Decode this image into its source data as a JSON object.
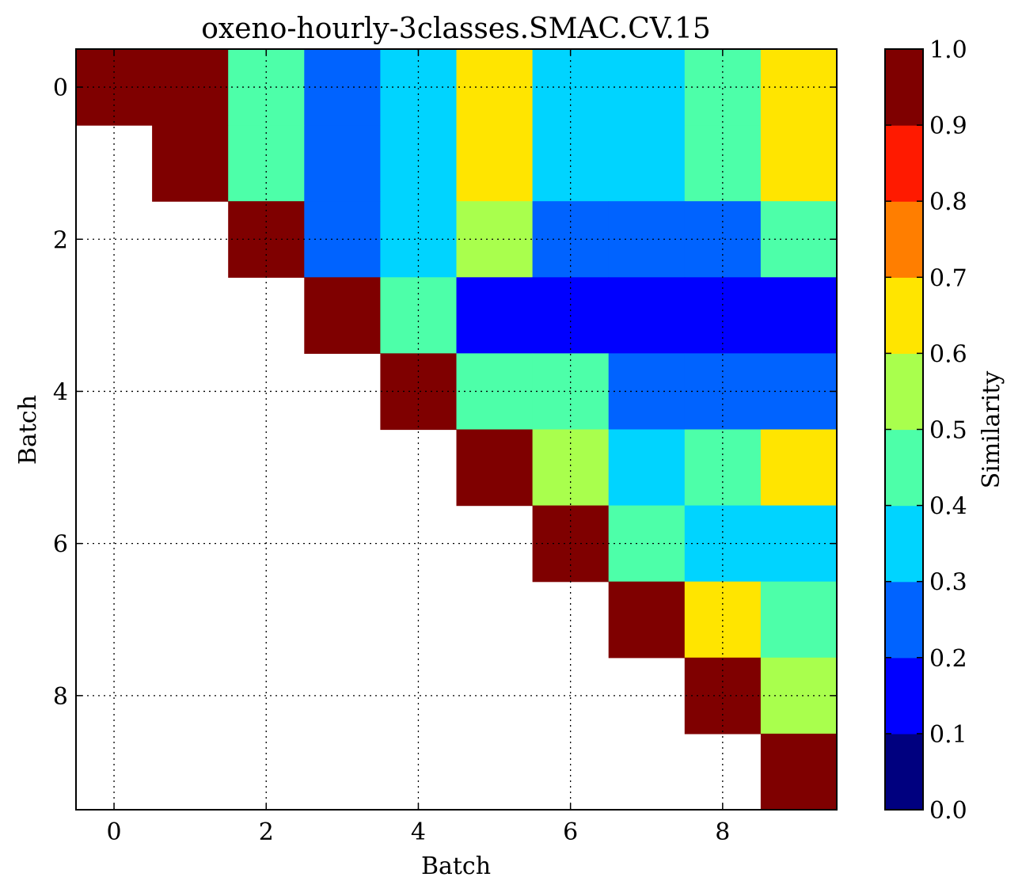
{
  "chart_data": {
    "type": "heatmap",
    "title": "oxeno-hourly-3classes.SMAC.CV.15",
    "xlabel": "Batch",
    "ylabel": "Batch",
    "colorbar_label": "Similarity",
    "x_ticks": [
      "0",
      "2",
      "4",
      "6",
      "8"
    ],
    "y_ticks": [
      "0",
      "2",
      "4",
      "6",
      "8"
    ],
    "colorbar_ticks": [
      "0.0",
      "0.1",
      "0.2",
      "0.3",
      "0.4",
      "0.5",
      "0.6",
      "0.7",
      "0.8",
      "0.9",
      "1.0"
    ],
    "vmin": 0.0,
    "vmax": 1.0,
    "colormap": "jet",
    "levels": 10,
    "grid": true,
    "rows": 10,
    "cols": 10,
    "colorbar_colors": [
      "#00007f",
      "#0000ff",
      "#0063ff",
      "#00d4ff",
      "#4dffa9",
      "#a9ff4d",
      "#ffe500",
      "#ff7e00",
      "#ff1a00",
      "#7f0000"
    ],
    "matrix": [
      [
        0.95,
        0.95,
        0.45,
        0.25,
        0.35,
        0.65,
        0.35,
        0.35,
        0.45,
        0.65
      ],
      [
        null,
        0.95,
        0.45,
        0.25,
        0.35,
        0.65,
        0.35,
        0.35,
        0.45,
        0.65
      ],
      [
        null,
        null,
        0.95,
        0.25,
        0.35,
        0.55,
        0.25,
        0.25,
        0.25,
        0.45
      ],
      [
        null,
        null,
        null,
        0.95,
        0.45,
        0.15,
        0.15,
        0.15,
        0.15,
        0.15
      ],
      [
        null,
        null,
        null,
        null,
        0.95,
        0.45,
        0.45,
        0.25,
        0.25,
        0.25
      ],
      [
        null,
        null,
        null,
        null,
        null,
        0.95,
        0.55,
        0.35,
        0.45,
        0.65
      ],
      [
        null,
        null,
        null,
        null,
        null,
        null,
        0.95,
        0.45,
        0.35,
        0.35
      ],
      [
        null,
        null,
        null,
        null,
        null,
        null,
        null,
        0.95,
        0.65,
        0.45
      ],
      [
        null,
        null,
        null,
        null,
        null,
        null,
        null,
        null,
        0.95,
        0.55
      ],
      [
        null,
        null,
        null,
        null,
        null,
        null,
        null,
        null,
        null,
        0.95
      ]
    ]
  }
}
